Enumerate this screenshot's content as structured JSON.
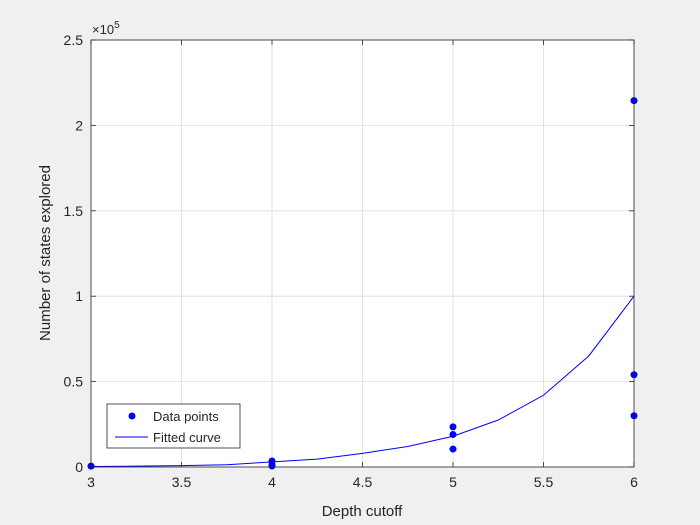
{
  "chart_data": {
    "type": "scatter",
    "xlabel": "Depth cutoff",
    "ylabel": "Number of states explored",
    "exponent_label": "×10",
    "exponent_power": "5",
    "xlim": [
      3,
      6
    ],
    "ylim": [
      0,
      250000
    ],
    "x_ticks": [
      3,
      3.5,
      4,
      4.5,
      5,
      5.5,
      6
    ],
    "x_tick_labels": [
      "3",
      "3.5",
      "4",
      "4.5",
      "5",
      "5.5",
      "6"
    ],
    "y_ticks": [
      0,
      50000,
      100000,
      150000,
      200000,
      250000
    ],
    "y_tick_labels": [
      "0",
      "0.5",
      "1",
      "1.5",
      "2",
      "2.5"
    ],
    "grid": true,
    "legend_position": "bottom-left",
    "series": [
      {
        "name": "Data points",
        "kind": "points",
        "color": "#0000ff",
        "points": [
          {
            "x": 3,
            "y": 500
          },
          {
            "x": 4,
            "y": 3500
          },
          {
            "x": 4,
            "y": 1500
          },
          {
            "x": 4,
            "y": 600
          },
          {
            "x": 5,
            "y": 23500
          },
          {
            "x": 5,
            "y": 19000
          },
          {
            "x": 5,
            "y": 10500
          },
          {
            "x": 6,
            "y": 214500
          },
          {
            "x": 6,
            "y": 54000
          },
          {
            "x": 6,
            "y": 30000
          }
        ]
      },
      {
        "name": "Fitted curve",
        "kind": "line",
        "color": "#0000ff",
        "points": [
          {
            "x": 3.0,
            "y": 300
          },
          {
            "x": 3.25,
            "y": 500
          },
          {
            "x": 3.5,
            "y": 800
          },
          {
            "x": 3.75,
            "y": 1300
          },
          {
            "x": 4.0,
            "y": 3000
          },
          {
            "x": 4.25,
            "y": 4600
          },
          {
            "x": 4.5,
            "y": 8000
          },
          {
            "x": 4.75,
            "y": 12000
          },
          {
            "x": 5.0,
            "y": 18000
          },
          {
            "x": 5.25,
            "y": 27500
          },
          {
            "x": 5.5,
            "y": 42000
          },
          {
            "x": 5.75,
            "y": 65000
          },
          {
            "x": 6.0,
            "y": 100000
          }
        ]
      }
    ]
  }
}
